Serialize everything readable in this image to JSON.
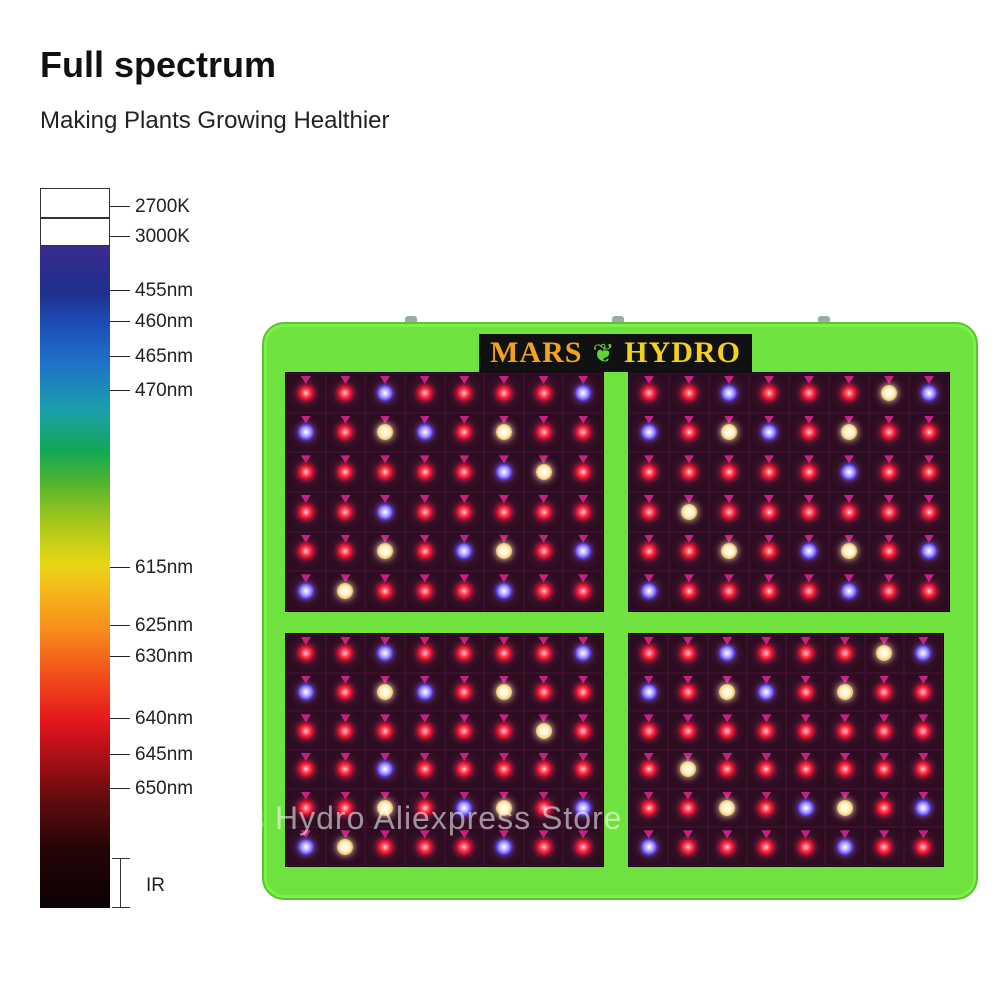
{
  "header": {
    "title": "Full spectrum",
    "subtitle": "Making Plants Growing Healthier"
  },
  "spectrum_scale": {
    "labels": {
      "k2700": "2700K",
      "k3000": "3000K",
      "nm455": "455nm",
      "nm460": "460nm",
      "nm465": "465nm",
      "nm470": "470nm",
      "nm615": "615nm",
      "nm625": "625nm",
      "nm630": "630nm",
      "nm640": "640nm",
      "nm645": "645nm",
      "nm650": "650nm",
      "ir": "IR"
    }
  },
  "product": {
    "brand_left": "MARS",
    "brand_right": "HYDRO",
    "panel_color": "#6fe23f",
    "led_colors": {
      "red": "#ff2a44",
      "blue": "#4b35e8",
      "white": "#fff3c4"
    }
  },
  "watermark": "Mars Hydro Aliexpress Store"
}
